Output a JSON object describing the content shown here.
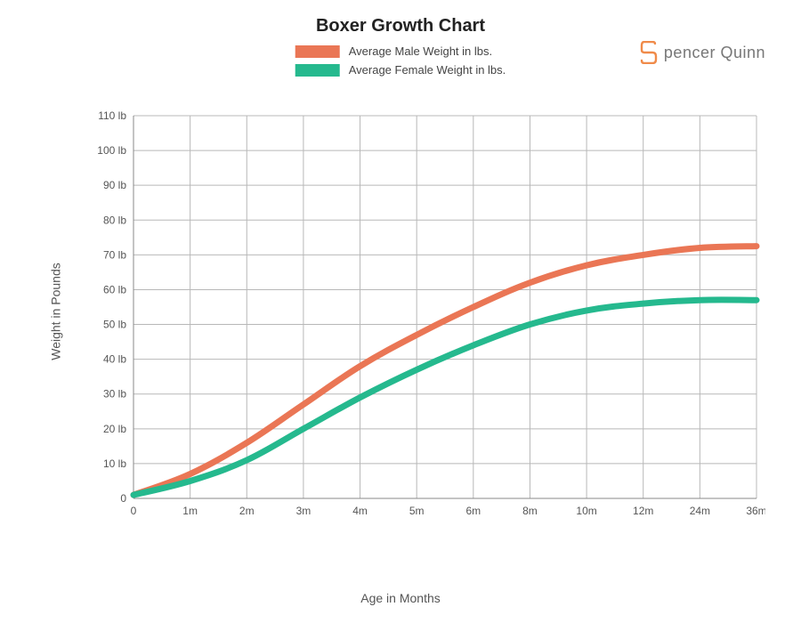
{
  "title": "Boxer Growth Chart",
  "brand": {
    "name": "pencer Quinn",
    "icon_color": "#f08b4a",
    "text_color": "#777777"
  },
  "legend": {
    "items": [
      {
        "label": "Average Male Weight in lbs.",
        "color": "#ea7655"
      },
      {
        "label": "Average Female Weight in lbs.",
        "color": "#25b98e"
      }
    ]
  },
  "chart": {
    "type": "line",
    "x_axis": {
      "title": "Age in Months",
      "categories": [
        "0",
        "1m",
        "2m",
        "3m",
        "4m",
        "5m",
        "6m",
        "8m",
        "10m",
        "12m",
        "24m",
        "36m"
      ],
      "label_fontsize": 12,
      "title_fontsize": 14
    },
    "y_axis": {
      "title": "Weight in Pounds",
      "min": 0,
      "max": 110,
      "tick_step": 10,
      "tick_suffix": " lb",
      "zero_label": "0",
      "label_fontsize": 12,
      "title_fontsize": 14
    },
    "series": [
      {
        "name": "male",
        "color": "#ea7655",
        "line_width": 7,
        "values": [
          1,
          7,
          16,
          27,
          38,
          47,
          55,
          62,
          67,
          70,
          72,
          72.5
        ]
      },
      {
        "name": "female",
        "color": "#25b98e",
        "line_width": 7,
        "values": [
          1,
          5,
          11,
          20,
          29,
          37,
          44,
          50,
          54,
          56,
          57,
          57
        ]
      }
    ],
    "background_color": "#ffffff",
    "grid_color": "#b8b8b8",
    "axis_color": "#888888",
    "plot_inner_width": 720,
    "plot_inner_height": 440
  }
}
